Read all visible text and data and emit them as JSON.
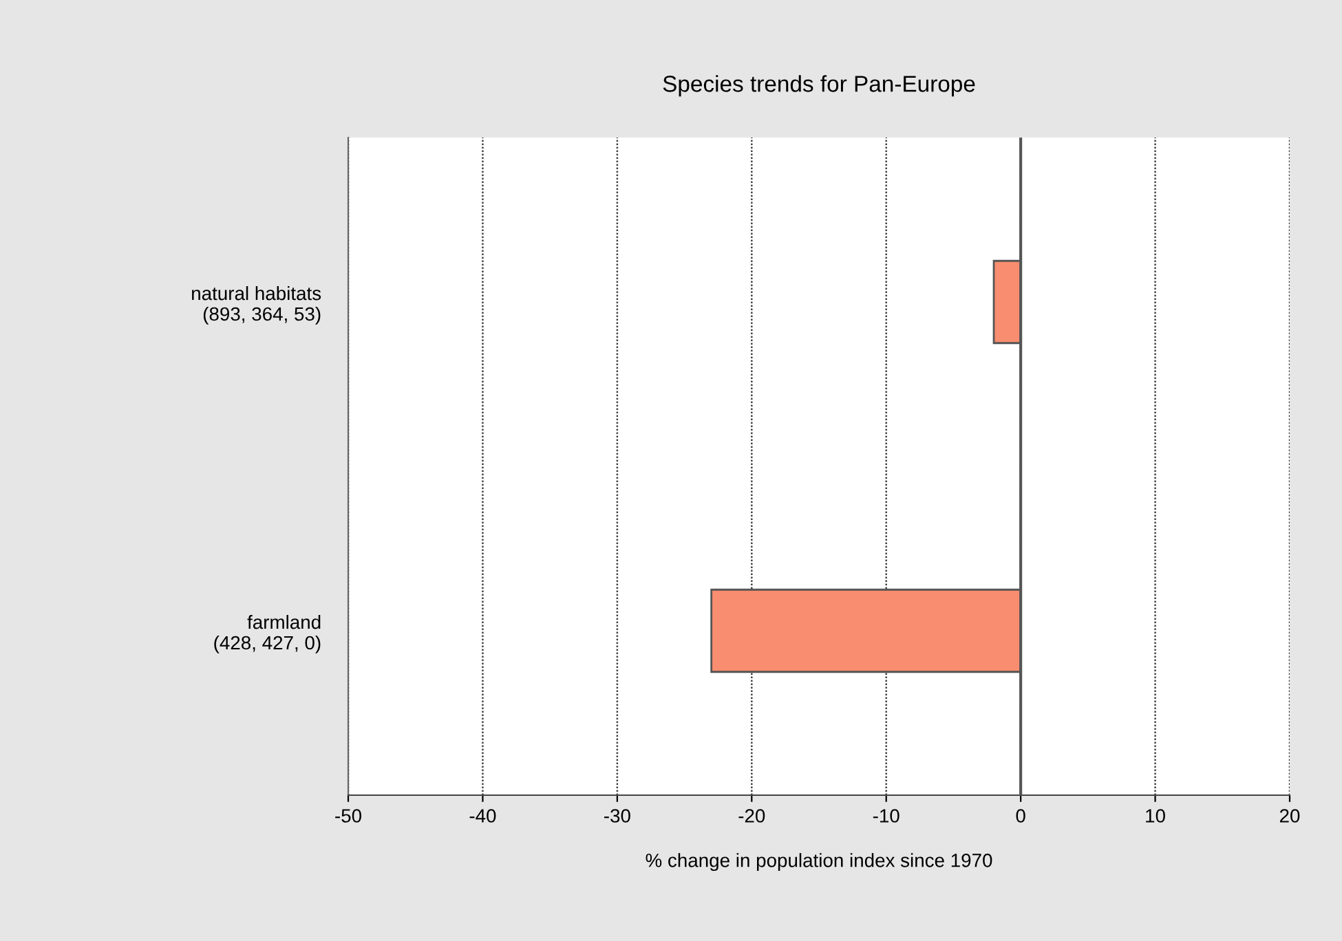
{
  "chart_data": {
    "type": "bar",
    "orientation": "horizontal",
    "title": "Species trends for Pan-Europe",
    "xlabel": "% change in population index since 1970",
    "categories": [
      "natural habitats\n(893, 364, 53)",
      "farmland\n(428, 427, 0)"
    ],
    "values": [
      -2,
      -23
    ],
    "color": "#f98d6f",
    "xlim": [
      -50,
      20
    ],
    "xticks": [
      -50,
      -40,
      -30,
      -20,
      -10,
      0,
      10,
      20
    ],
    "grid": "x"
  }
}
